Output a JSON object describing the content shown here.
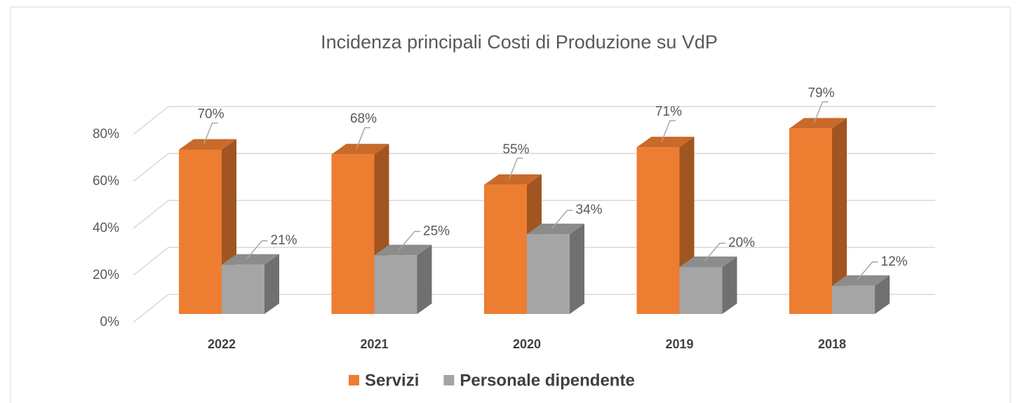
{
  "chart_data": {
    "type": "bar3d",
    "title": "Incidenza principali Costi di Produzione su VdP",
    "categories": [
      "2022",
      "2021",
      "2020",
      "2019",
      "2018"
    ],
    "series": [
      {
        "name": "Servizi",
        "color": "#ED7D31",
        "values": [
          70,
          68,
          55,
          71,
          79
        ],
        "value_labels": [
          "70%",
          "68%",
          "55%",
          "71%",
          "79%"
        ]
      },
      {
        "name": "Personale dipendente",
        "color": "#A5A5A5",
        "values": [
          21,
          25,
          34,
          20,
          12
        ],
        "value_labels": [
          "21%",
          "25%",
          "34%",
          "20%",
          "12%"
        ]
      }
    ],
    "ylim": [
      0,
      80
    ],
    "yticks": [
      {
        "value": 0,
        "label": "0%"
      },
      {
        "value": 20,
        "label": "20%"
      },
      {
        "value": 40,
        "label": "40%"
      },
      {
        "value": 60,
        "label": "60%"
      },
      {
        "value": 80,
        "label": "80%"
      }
    ],
    "grid": true,
    "legend": "bottom"
  }
}
